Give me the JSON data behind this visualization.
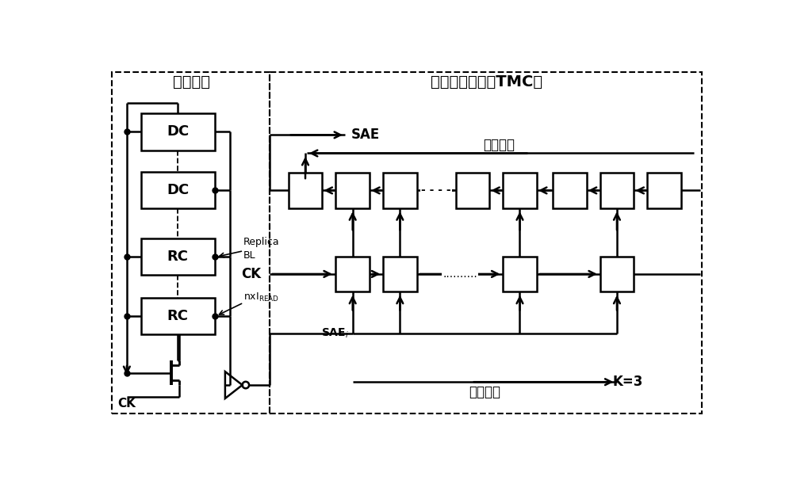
{
  "fig_width": 10.0,
  "fig_height": 6.11,
  "bg_color": "#ffffff",
  "line_color": "#000000",
  "title_left": "时序复制",
  "title_right": "时序倍乘电路（TMC）",
  "label_forward": "正向通路",
  "label_backward": "反向通路",
  "label_K3": "K=3",
  "label_SAE": "SAE",
  "label_SAEi": "SAE",
  "label_CK": "CK",
  "label_ReplicaBL": "Replica\nBL",
  "label_nxI": "nxI",
  "lw": 1.8,
  "lw_thin": 1.3
}
